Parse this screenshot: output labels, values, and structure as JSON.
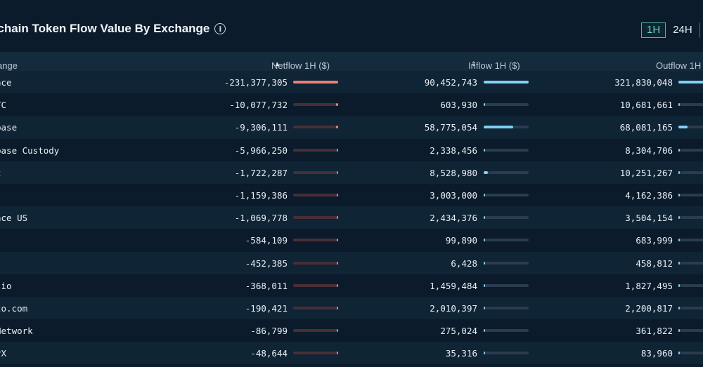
{
  "title": "tichain Token Flow Value By Exchange",
  "timeframes": [
    {
      "label": "1H",
      "active": true
    },
    {
      "label": "24H",
      "active": false
    },
    {
      "label": "",
      "active": false
    }
  ],
  "columns": {
    "exchange": "ange",
    "netflow": "Netflow 1H ($)",
    "inflow": "Inflow 1H ($)",
    "outflow": "Outflow 1H"
  },
  "colors": {
    "negative": "#f07c78",
    "positive": "#7fd0f5",
    "accent": "#4fb3a5"
  },
  "rows": [
    {
      "name": "nce",
      "netflow": "-231,377,305",
      "inflow": "90,452,743",
      "outflow": "321,830,048",
      "net_frac": 1.0,
      "in_frac": 1.0,
      "out_frac": 1.0
    },
    {
      "name": "TC",
      "netflow": "-10,077,732",
      "inflow": "603,930",
      "outflow": "10,681,661",
      "net_frac": 0.04,
      "in_frac": 0.007,
      "out_frac": 0.033
    },
    {
      "name": "base",
      "netflow": "-9,306,111",
      "inflow": "58,775,054",
      "outflow": "68,081,165",
      "net_frac": 0.04,
      "in_frac": 0.65,
      "out_frac": 0.21
    },
    {
      "name": "base Custody",
      "netflow": "-5,966,250",
      "inflow": "2,338,456",
      "outflow": "8,304,706",
      "net_frac": 0.03,
      "in_frac": 0.026,
      "out_frac": 0.026
    },
    {
      "name": "t",
      "netflow": "-1,722,287",
      "inflow": "8,528,980",
      "outflow": "10,251,267",
      "net_frac": 0.01,
      "in_frac": 0.094,
      "out_frac": 0.032
    },
    {
      "name": "",
      "netflow": "-1,159,386",
      "inflow": "3,003,000",
      "outflow": "4,162,386",
      "net_frac": 0.005,
      "in_frac": 0.033,
      "out_frac": 0.013
    },
    {
      "name": "nce US",
      "netflow": "-1,069,778",
      "inflow": "2,434,376",
      "outflow": "3,504,154",
      "net_frac": 0.005,
      "in_frac": 0.027,
      "out_frac": 0.011
    },
    {
      "name": "",
      "netflow": "-584,109",
      "inflow": "99,890",
      "outflow": "683,999",
      "net_frac": 0.003,
      "in_frac": 0.001,
      "out_frac": 0.002
    },
    {
      "name": "",
      "netflow": "-452,385",
      "inflow": "6,428",
      "outflow": "458,812",
      "net_frac": 0.002,
      "in_frac": 0.0,
      "out_frac": 0.001
    },
    {
      "name": ".io",
      "netflow": "-368,011",
      "inflow": "1,459,484",
      "outflow": "1,827,495",
      "net_frac": 0.002,
      "in_frac": 0.016,
      "out_frac": 0.006
    },
    {
      "name": "to.com",
      "netflow": "-190,421",
      "inflow": "2,010,397",
      "outflow": "2,200,817",
      "net_frac": 0.001,
      "in_frac": 0.022,
      "out_frac": 0.007
    },
    {
      "name": "Network",
      "netflow": "-86,799",
      "inflow": "275,024",
      "outflow": "361,822",
      "net_frac": 0.0,
      "in_frac": 0.003,
      "out_frac": 0.001
    },
    {
      "name": "rX",
      "netflow": "-48,644",
      "inflow": "35,316",
      "outflow": "83,960",
      "net_frac": 0.0,
      "in_frac": 0.0,
      "out_frac": 0.0
    }
  ]
}
